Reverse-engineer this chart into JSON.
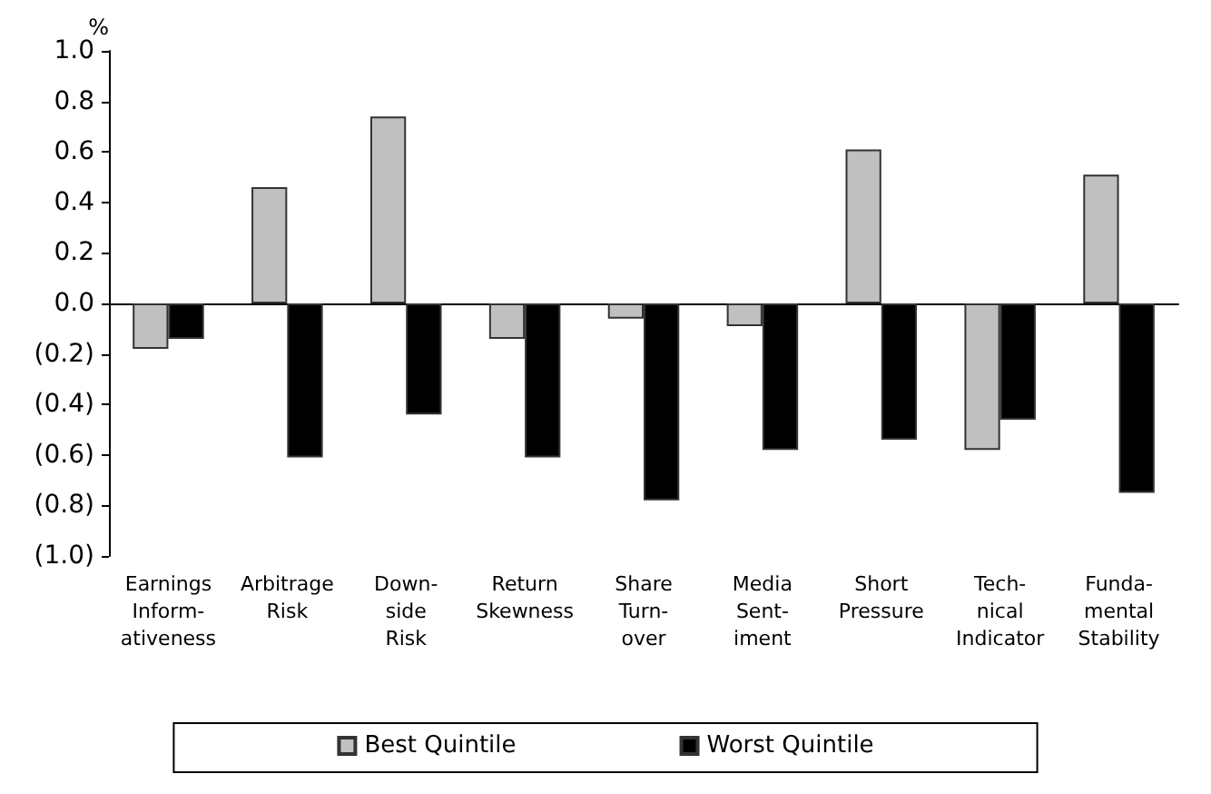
{
  "chart_data": {
    "type": "bar",
    "ylabel": "%",
    "categories": [
      "Earnings\nInform-\nativeness",
      "Arbitrage\nRisk",
      "Down-\nside\nRisk",
      "Return\nSkewness",
      "Share\nTurn-\nover",
      "Media\nSent-\niment",
      "Short\nPressure",
      "Tech-\nnical\nIndicator",
      "Funda-\nmental\nStability"
    ],
    "series": [
      {
        "name": "Best Quintile",
        "color": "#c0c0c0",
        "values": [
          -0.18,
          0.46,
          0.74,
          -0.14,
          -0.06,
          -0.09,
          0.61,
          -0.58,
          0.51
        ]
      },
      {
        "name": "Worst Quintile",
        "color": "#000000",
        "values": [
          -0.14,
          -0.61,
          -0.44,
          -0.61,
          -0.78,
          -0.58,
          -0.54,
          -0.46,
          -0.75
        ]
      }
    ],
    "ylim": [
      -1,
      1
    ],
    "yticks": [
      {
        "value": -1,
        "label": "(1.0)"
      },
      {
        "value": -0.8,
        "label": "(0.8)"
      },
      {
        "value": -0.6,
        "label": "(0.6)"
      },
      {
        "value": -0.4,
        "label": "(0.4)"
      },
      {
        "value": -0.2,
        "label": "(0.2)"
      },
      {
        "value": 0,
        "label": "0.0"
      },
      {
        "value": 0.2,
        "label": "0.2"
      },
      {
        "value": 0.4,
        "label": "0.4"
      },
      {
        "value": 0.6,
        "label": "0.6"
      },
      {
        "value": 0.8,
        "label": "0.8"
      },
      {
        "value": 1,
        "label": "1.0"
      }
    ],
    "legend": "bottom"
  }
}
